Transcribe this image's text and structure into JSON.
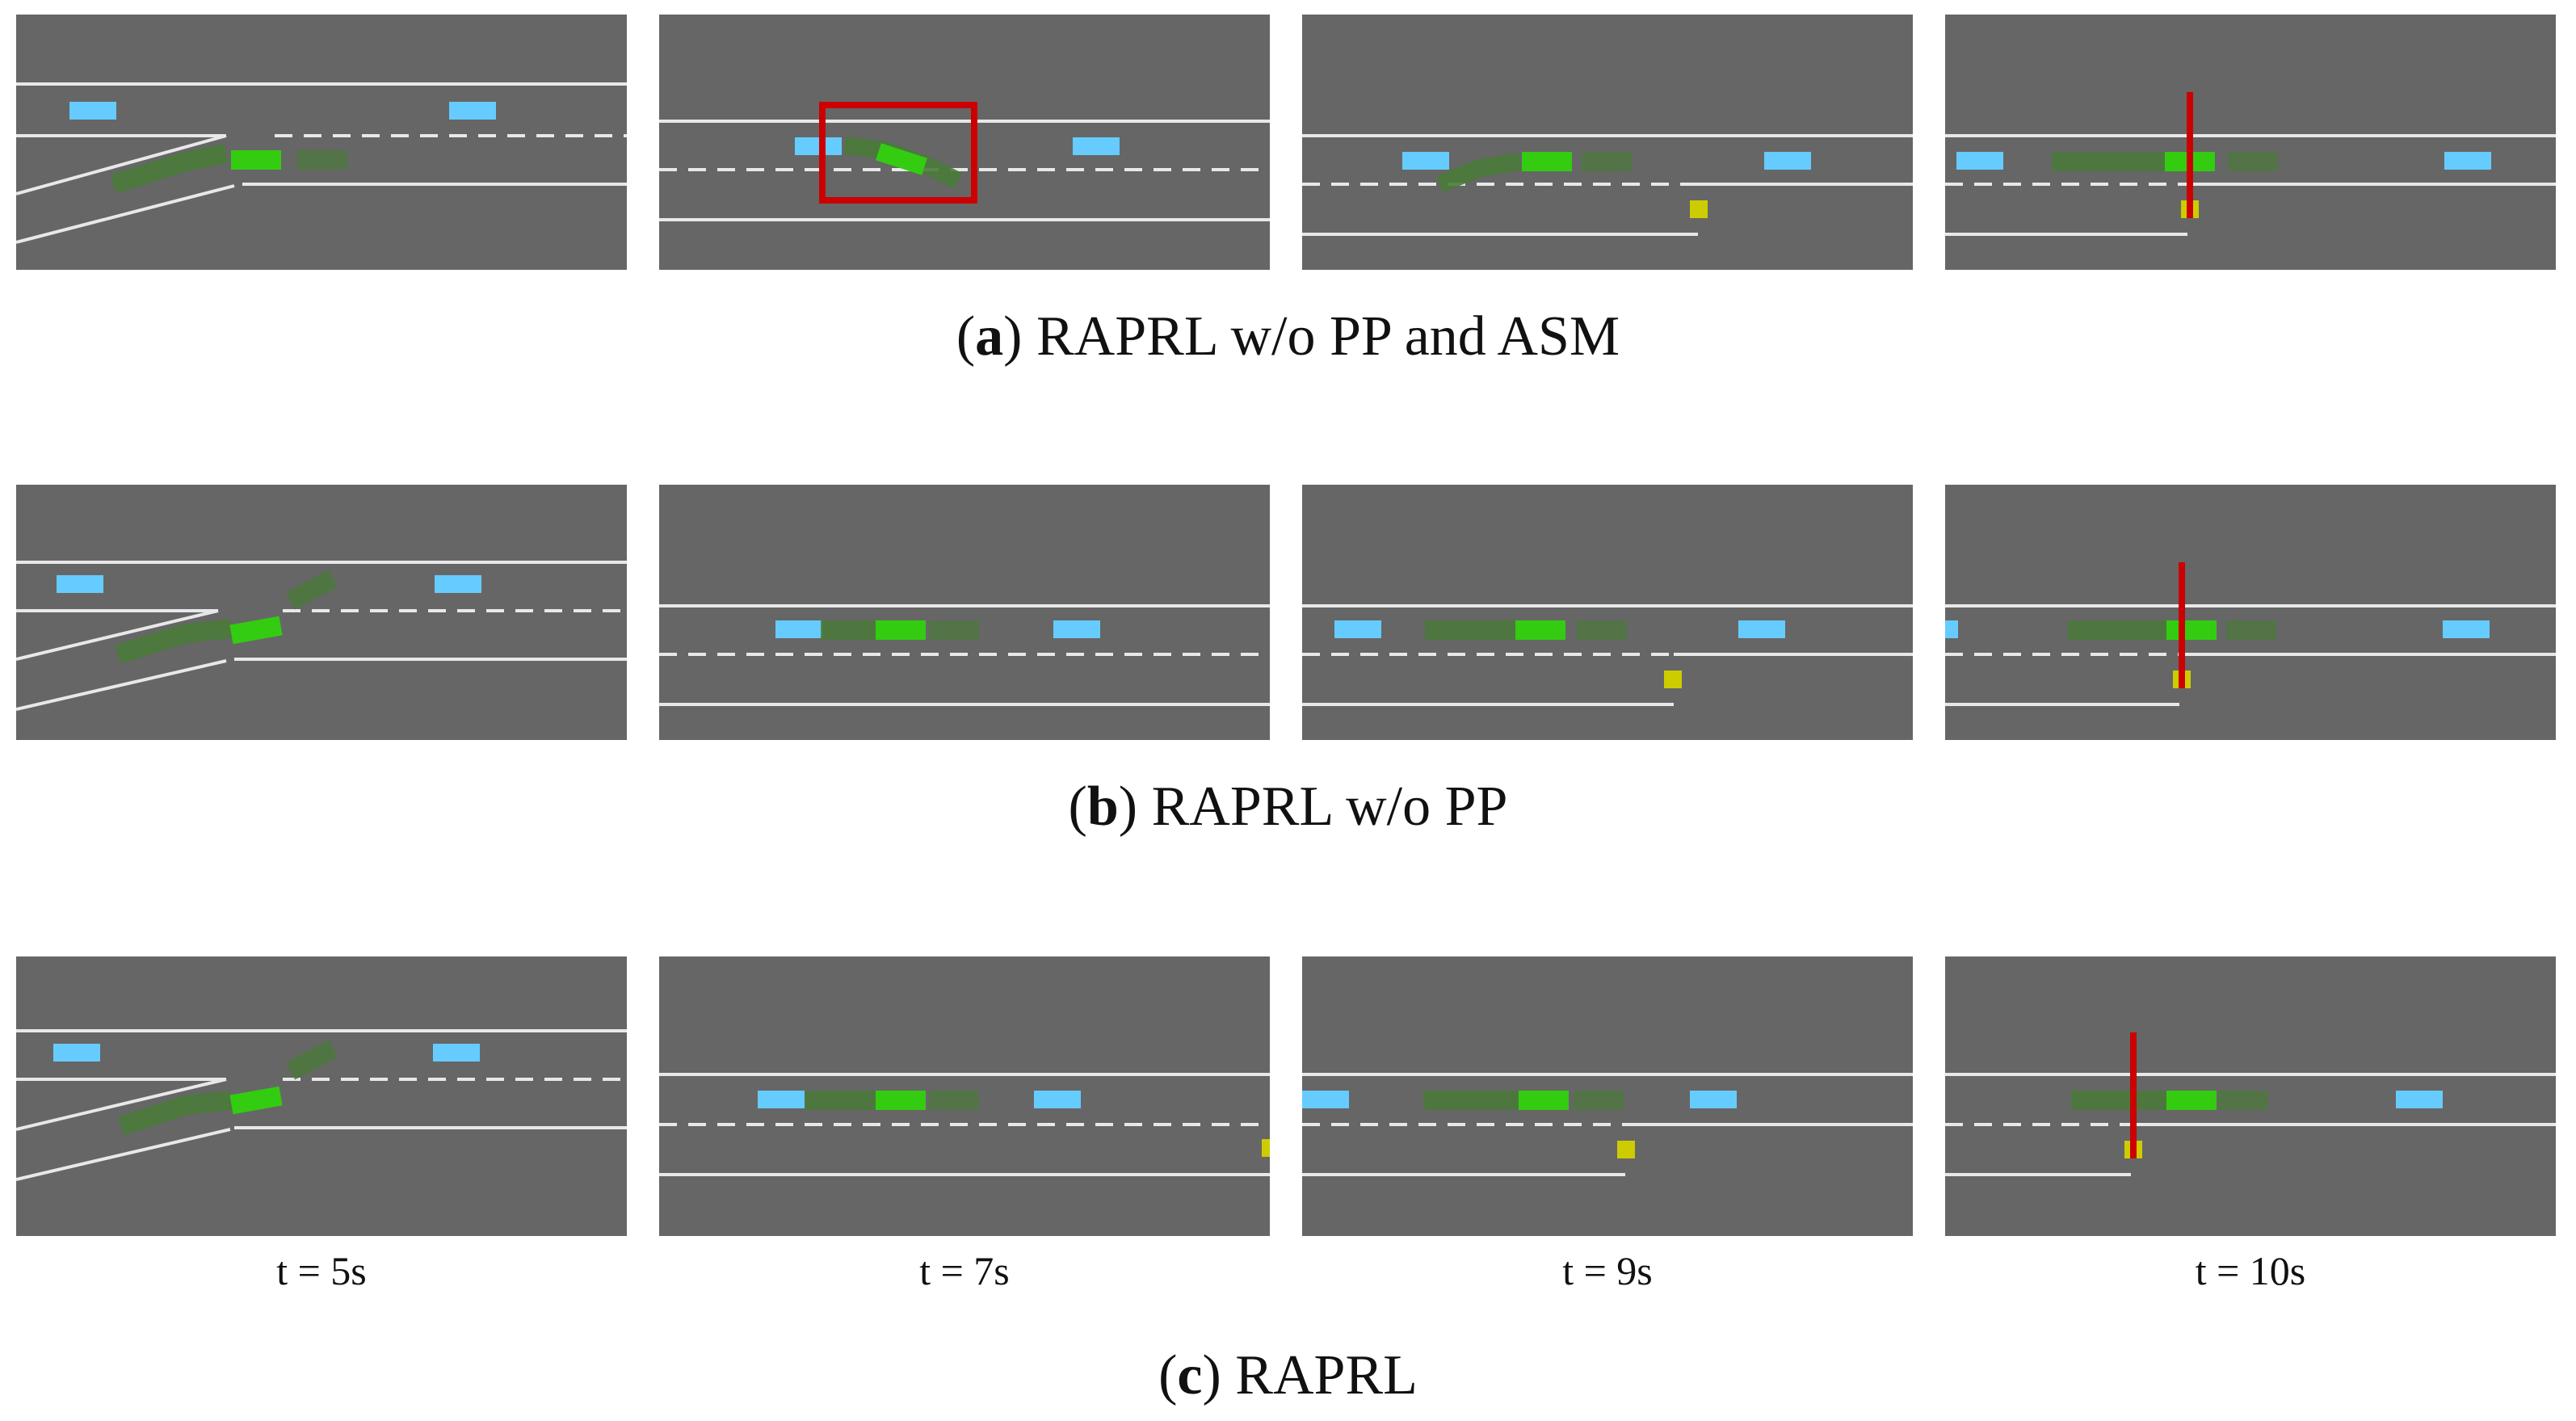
{
  "figure": {
    "rows": [
      {
        "key": "a",
        "caption_letter": "a",
        "caption_text": "RAPRL w/o PP and ASM",
        "frames": [
          {
            "scene": "merge",
            "notes": [
              "on-ramp with merging ego trajectory",
              "two blue vehicles on main road"
            ]
          },
          {
            "scene": "lane",
            "highlight": "red-box",
            "notes": [
              "ego vehicle swerving between lanes"
            ]
          },
          {
            "scene": "lane-end",
            "notes": [
              "yellow marker at end of lane"
            ]
          },
          {
            "scene": "lane-end",
            "collision_line": true,
            "notes": [
              "red vertical line at yellow marker"
            ]
          }
        ]
      },
      {
        "key": "b",
        "caption_letter": "b",
        "caption_text": "RAPRL w/o PP",
        "frames": [
          {
            "scene": "merge"
          },
          {
            "scene": "lane"
          },
          {
            "scene": "lane-end"
          },
          {
            "scene": "lane-end",
            "collision_line": true
          }
        ]
      },
      {
        "key": "c",
        "caption_letter": "c",
        "caption_text": "RAPRL",
        "frames": [
          {
            "scene": "merge"
          },
          {
            "scene": "lane"
          },
          {
            "scene": "lane-end"
          },
          {
            "scene": "lane-end",
            "collision_line": true
          }
        ]
      }
    ],
    "time_labels": [
      "t = 5s",
      "t = 7s",
      "t = 9s",
      "t = 10s"
    ],
    "colors": {
      "road": "#666666",
      "lane_line": "#e8e8e8",
      "ego": "#33cc11",
      "ego_trail": "#4a7a3a",
      "other_vehicle": "#66ccff",
      "marker": "#cccc00",
      "collision_line": "#cc0000",
      "highlight_box": "#cc0000"
    }
  }
}
